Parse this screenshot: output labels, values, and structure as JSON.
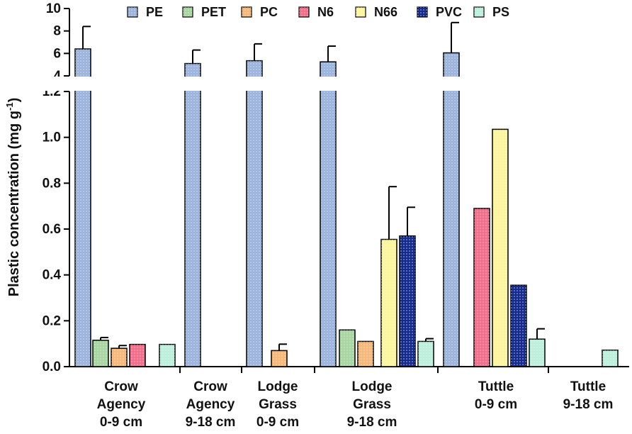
{
  "chart_data": {
    "type": "bar",
    "ylabel_main": "Plastic concentration (mg g",
    "ylabel_sup": "-1",
    "ylabel_close": ")",
    "y_axis_broken": true,
    "ylim_lower": [
      0,
      1.2
    ],
    "ylim_upper": [
      4,
      10
    ],
    "yticks_lower": [
      "0.0",
      "0.2",
      "0.4",
      "0.6",
      "0.8",
      "1.0",
      "1.2"
    ],
    "yticks_upper": [
      "4",
      "6",
      "8",
      "10"
    ],
    "legend_position": "top",
    "categories": [
      [
        "Crow",
        "Agency",
        "0-9 cm"
      ],
      [
        "Crow",
        "Agency",
        "9-18 cm"
      ],
      [
        "Lodge",
        "Grass",
        "0-9 cm"
      ],
      [
        "Lodge",
        "Grass",
        "9-18 cm"
      ],
      [
        "Tuttle",
        "0-9 cm"
      ],
      [
        "Tuttle",
        "9-18 cm"
      ]
    ],
    "series": [
      {
        "name": "PE",
        "color": "#9db5dc",
        "values": [
          6.4,
          5.1,
          5.35,
          5.25,
          6.05,
          null
        ],
        "errors": [
          2.0,
          1.2,
          1.5,
          1.4,
          2.7,
          null
        ]
      },
      {
        "name": "PET",
        "color": "#a8d5a2",
        "values": [
          0.115,
          null,
          null,
          0.16,
          null,
          null
        ],
        "errors": [
          0.012,
          null,
          null,
          0,
          null,
          null
        ]
      },
      {
        "name": "PC",
        "color": "#f5b87a",
        "values": [
          0.08,
          null,
          0.07,
          0.11,
          null,
          null
        ],
        "errors": [
          0.012,
          null,
          0.028,
          0,
          null,
          null
        ]
      },
      {
        "name": "N6",
        "color": "#f06f8a",
        "values": [
          0.097,
          null,
          null,
          null,
          0.69,
          null
        ],
        "errors": [
          0,
          null,
          null,
          null,
          0,
          null
        ]
      },
      {
        "name": "N66",
        "color": "#fbf59e",
        "values": [
          null,
          null,
          null,
          0.555,
          1.035,
          null
        ],
        "errors": [
          null,
          null,
          null,
          0.23,
          0,
          null
        ]
      },
      {
        "name": "PVC",
        "color": "#142a8c",
        "values": [
          null,
          null,
          null,
          0.57,
          0.355,
          null
        ],
        "errors": [
          null,
          null,
          null,
          0.125,
          0,
          null
        ]
      },
      {
        "name": "PS",
        "color": "#bdf0dc",
        "values": [
          0.097,
          null,
          null,
          0.11,
          0.12,
          0.072
        ],
        "errors": [
          0,
          null,
          null,
          0.012,
          0.045,
          0
        ]
      }
    ]
  }
}
